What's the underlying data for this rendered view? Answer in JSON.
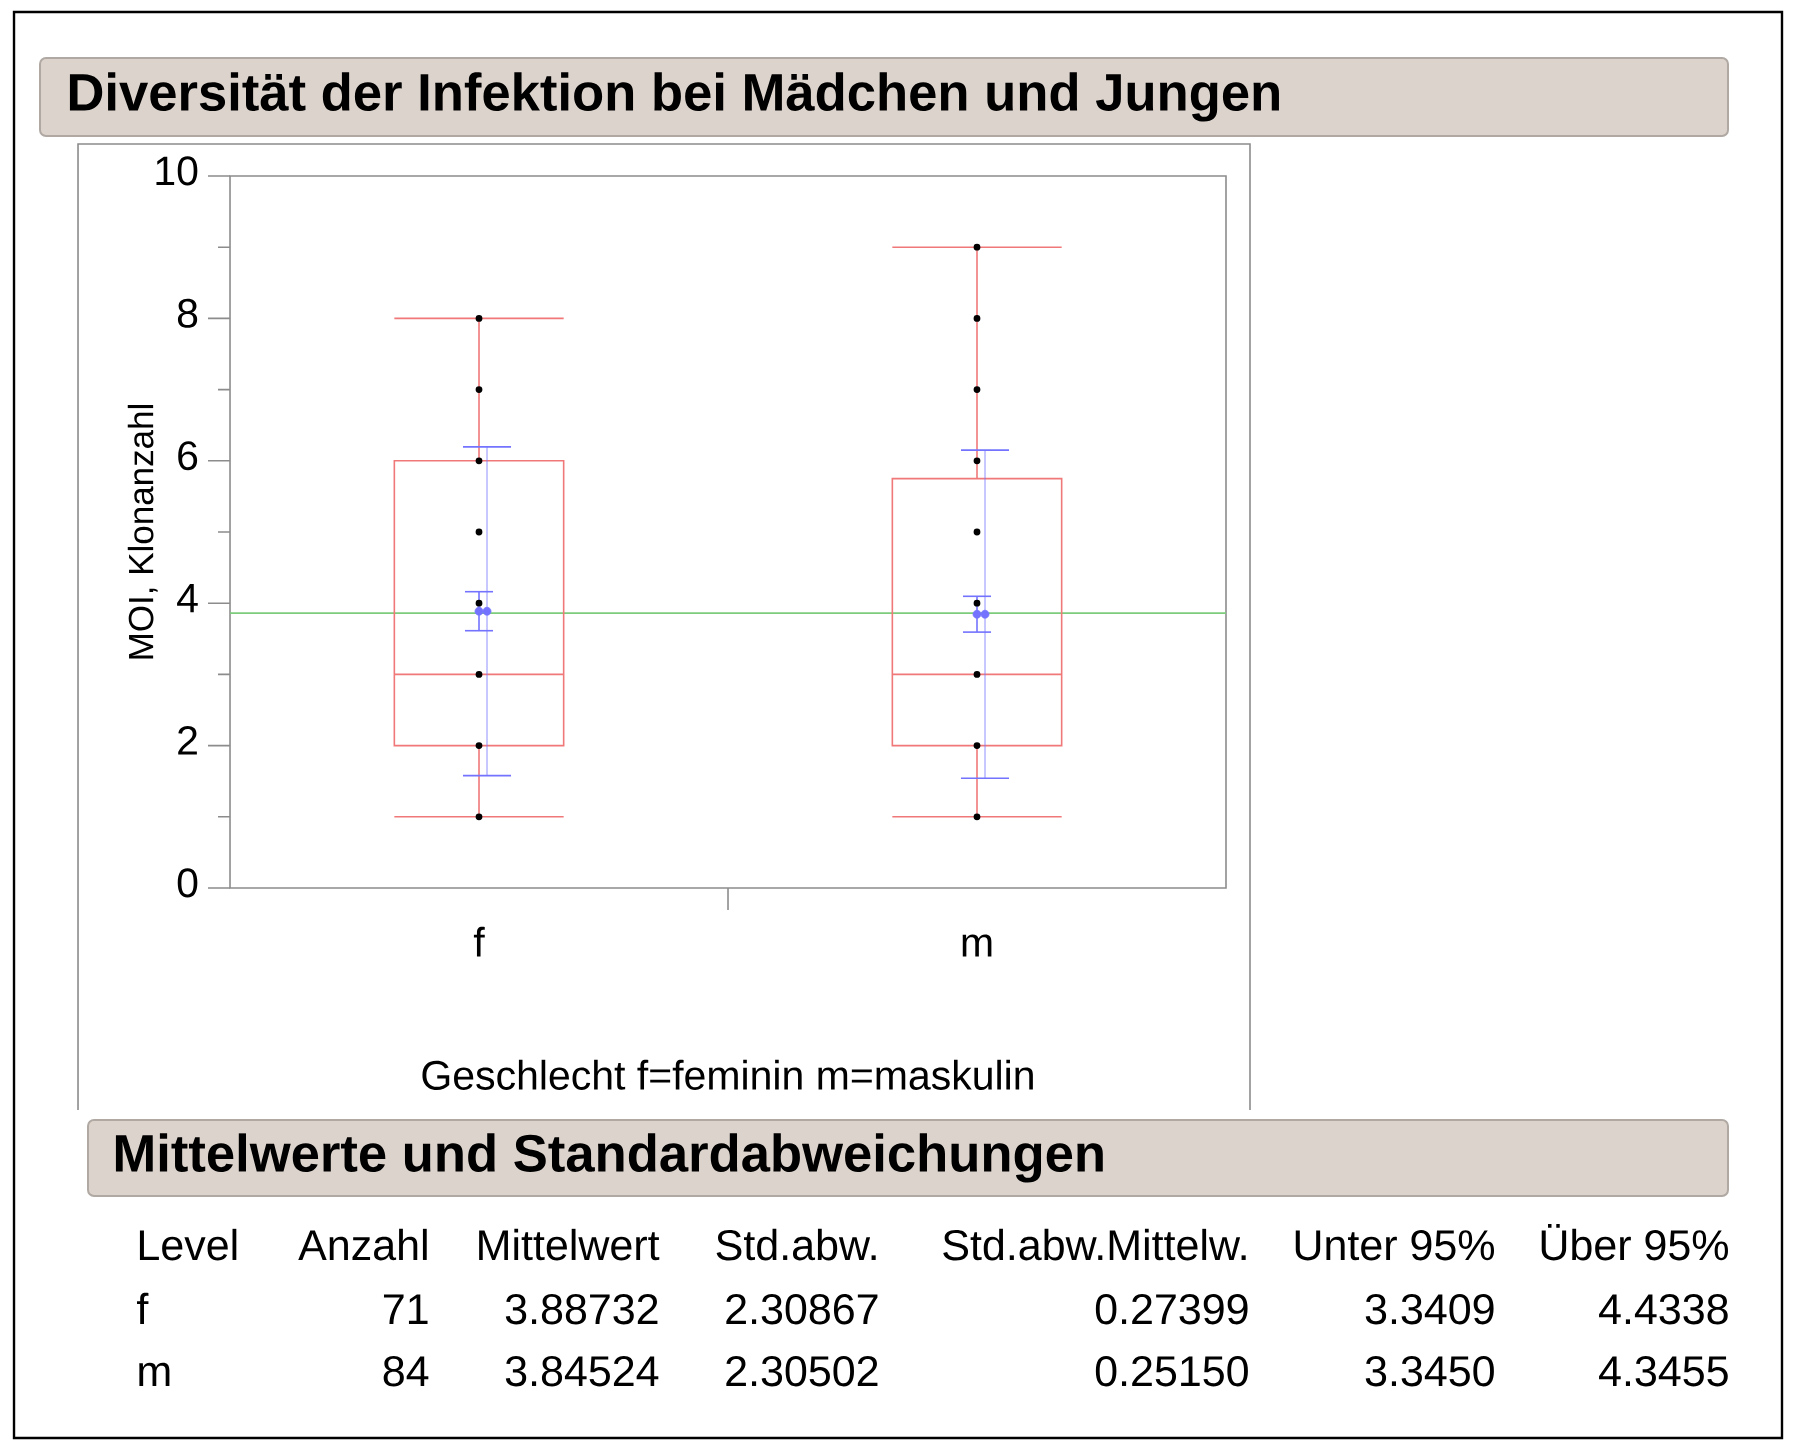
{
  "chart_data": [
    {
      "type": "box",
      "title": "Diversität der Infektion bei Mädchen und Jungen",
      "xlabel": "Geschlecht f=feminin m=maskulin",
      "ylabel": "MOI, Klonanzahl",
      "categories": [
        "f",
        "m"
      ],
      "ylim": [
        0,
        10
      ],
      "yticks": [
        0,
        {
          "value": 1,
          "label": null
        },
        2,
        {
          "value": 3,
          "label": null
        },
        4,
        {
          "value": 5,
          "label": null
        },
        6,
        {
          "value": 7,
          "label": null
        },
        8,
        {
          "value": 9,
          "label": null
        },
        10
      ],
      "color": "#f07878",
      "boxes": [
        {
          "low": 1,
          "q1": 2,
          "median": 3,
          "q3": 6,
          "high": 8
        },
        {
          "low": 1,
          "q1": 2,
          "median": 3,
          "q3": 5.75,
          "high": 9
        }
      ],
      "series": [
        {
          "type": "scatter",
          "x": [
            "f",
            "f",
            "f",
            "f",
            "f",
            "f",
            "f",
            "f",
            "m",
            "m",
            "m",
            "m",
            "m",
            "m",
            "m",
            "m",
            "m"
          ],
          "values": [
            1,
            2,
            3,
            4,
            5,
            6,
            7,
            8,
            1,
            2,
            3,
            4,
            5,
            6,
            7,
            8,
            9
          ],
          "color": "#000000",
          "marker": "circle"
        },
        {
          "type": "scatter",
          "x": [
            "f",
            "m"
          ],
          "values": [
            3.88732,
            3.84524
          ],
          "errors": [
            0.27399,
            0.2515
          ],
          "color": "#7373ff",
          "line_style": "solid"
        },
        {
          "type": "scatter",
          "x": [
            "f",
            "m"
          ],
          "values": [
            3.88732,
            3.84524
          ],
          "errors": [
            2.30867,
            2.30502
          ],
          "color": "#7373ff"
        }
      ],
      "ref_lines": [
        {
          "axis": "y",
          "value": 3.86,
          "color": "#7ccc7c"
        }
      ]
    },
    {
      "type": "other",
      "title": "Mittelwerte und Standardabweichungen",
      "annotations": [
        "Level",
        "Anzahl",
        "Mittelwert",
        "Std.abw.",
        "Std.abw.Mittelw.",
        "Unter 95%",
        "Über 95%",
        "f",
        "71",
        "3.88732",
        "2.30867",
        "0.27399",
        "3.3409",
        "4.4338",
        "m",
        "84",
        "3.84524",
        "2.30502",
        "0.25150",
        "3.3450",
        "4.3455"
      ]
    }
  ]
}
